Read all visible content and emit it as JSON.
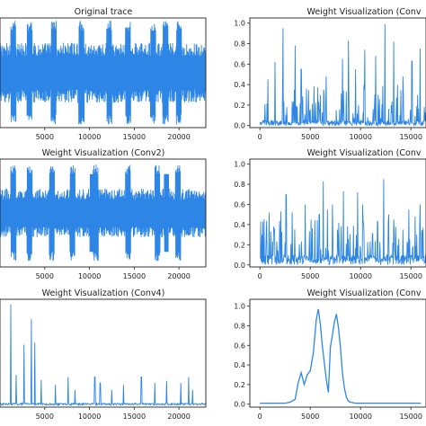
{
  "figure": {
    "line_color": "#2d86e6",
    "text_color": "#222222",
    "panel_border_color": "#222222"
  },
  "chart_data": [
    {
      "type": "line",
      "title": "Original trace",
      "xlabel": "",
      "ylabel": "",
      "xlim": [
        0,
        23000
      ],
      "xticks": [
        5000,
        10000,
        15000,
        20000
      ],
      "xtick_labels": [
        "5000",
        "10000",
        "15000",
        "20000"
      ],
      "yticks": [],
      "ytick_labels": [],
      "ylim": [
        -1,
        1
      ],
      "series": [
        {
          "signal": "dense-oscillation",
          "amplitude": 0.55,
          "spike_amplitude": 0.95,
          "spike_x": [
            1500,
            3300,
            6000,
            9100,
            12200,
            14300,
            17100,
            18500,
            20000
          ]
        }
      ],
      "grid": false,
      "legend": "none"
    },
    {
      "type": "line",
      "title": "Weight Visualization (Conv",
      "xlabel": "",
      "ylabel": "",
      "xlim": [
        -1000,
        16500
      ],
      "ylim": [
        -0.02,
        1.05
      ],
      "xticks": [
        0,
        5000,
        10000,
        15000
      ],
      "xtick_labels": [
        "0",
        "5000",
        "10000",
        "15000"
      ],
      "yticks": [
        0.0,
        0.2,
        0.4,
        0.6,
        0.8,
        1.0
      ],
      "ytick_labels": [
        "0.0",
        "0.2",
        "0.4",
        "0.6",
        "0.8",
        "1.0"
      ],
      "series": [
        {
          "signal": "sparse-spikes",
          "baseline": 0.05,
          "spikes": [
            [
              800,
              0.45
            ],
            [
              1500,
              0.62
            ],
            [
              2300,
              0.95
            ],
            [
              3500,
              0.78
            ],
            [
              4100,
              0.55
            ],
            [
              5200,
              0.72
            ],
            [
              5900,
              0.86
            ],
            [
              6600,
              0.48
            ],
            [
              7600,
              0.85
            ],
            [
              8200,
              0.65
            ],
            [
              8800,
              0.83
            ],
            [
              9500,
              0.55
            ],
            [
              10400,
              0.74
            ],
            [
              11500,
              0.68
            ],
            [
              12400,
              0.99
            ],
            [
              13300,
              0.82
            ],
            [
              14200,
              0.48
            ],
            [
              15100,
              0.63
            ],
            [
              15900,
              0.75
            ]
          ]
        }
      ],
      "grid": false,
      "legend": "none"
    },
    {
      "type": "line",
      "title": "Weight Visualization (Conv2)",
      "xlabel": "",
      "ylabel": "",
      "xlim": [
        0,
        23000
      ],
      "xticks": [
        5000,
        10000,
        15000,
        20000
      ],
      "xtick_labels": [
        "5000",
        "10000",
        "15000",
        "20000"
      ],
      "yticks": [],
      "ytick_labels": [],
      "ylim": [
        -1,
        1
      ],
      "series": [
        {
          "signal": "dense-oscillation",
          "amplitude": 0.45,
          "spike_amplitude": 0.9,
          "spike_x": [
            1500,
            3300,
            5800,
            8100,
            10700,
            14300,
            17600,
            19900
          ],
          "dips_x": [
            1500,
            5800,
            10300,
            14300,
            18600
          ]
        }
      ],
      "grid": false,
      "legend": "none"
    },
    {
      "type": "line",
      "title": "Weight Visualization (Conv",
      "xlabel": "",
      "ylabel": "",
      "xlim": [
        -1000,
        16500
      ],
      "ylim": [
        -0.02,
        1.05
      ],
      "xticks": [
        0,
        5000,
        10000,
        15000
      ],
      "xtick_labels": [
        "0",
        "5000",
        "10000",
        "15000"
      ],
      "yticks": [
        0.0,
        0.2,
        0.4,
        0.6,
        0.8,
        1.0
      ],
      "ytick_labels": [
        "0.0",
        "0.2",
        "0.4",
        "0.6",
        "0.8",
        "1.0"
      ],
      "series": [
        {
          "signal": "sparse-spikes",
          "baseline": 0.1,
          "spikes": [
            [
              400,
              0.45
            ],
            [
              900,
              0.52
            ],
            [
              1400,
              0.38
            ],
            [
              2100,
              0.53
            ],
            [
              2600,
              0.7
            ],
            [
              3200,
              0.52
            ],
            [
              3900,
              0.42
            ],
            [
              4500,
              0.6
            ],
            [
              5100,
              0.45
            ],
            [
              5900,
              0.5
            ],
            [
              6300,
              0.83
            ],
            [
              6700,
              0.55
            ],
            [
              7200,
              0.6
            ],
            [
              7700,
              0.35
            ],
            [
              8300,
              0.73
            ],
            [
              8800,
              0.5
            ],
            [
              9300,
              0.97
            ],
            [
              9700,
              0.72
            ],
            [
              10200,
              0.6
            ],
            [
              10700,
              0.75
            ],
            [
              11200,
              0.55
            ],
            [
              11700,
              0.43
            ],
            [
              12300,
              0.85
            ],
            [
              12800,
              0.5
            ],
            [
              13300,
              0.45
            ],
            [
              13700,
              0.7
            ],
            [
              14200,
              0.35
            ],
            [
              14800,
              0.55
            ],
            [
              15400,
              0.48
            ],
            [
              15900,
              0.6
            ]
          ]
        }
      ],
      "grid": false,
      "legend": "none"
    },
    {
      "type": "line",
      "title": "Weight Visualization (Conv4)",
      "xlabel": "",
      "ylabel": "",
      "xlim": [
        0,
        23000
      ],
      "ylim": [
        -0.02,
        1.05
      ],
      "xticks": [
        5000,
        10000,
        15000,
        20000
      ],
      "xtick_labels": [
        "5000",
        "10000",
        "15000",
        "20000"
      ],
      "yticks": [],
      "ytick_labels": [],
      "series": [
        {
          "signal": "sparse-spikes",
          "baseline": 0.02,
          "spikes": [
            [
              1200,
              1.0
            ],
            [
              1800,
              0.3
            ],
            [
              2700,
              0.6
            ],
            [
              3500,
              0.85
            ],
            [
              3900,
              0.62
            ],
            [
              4600,
              0.25
            ],
            [
              6200,
              0.2
            ],
            [
              7600,
              0.28
            ],
            [
              8400,
              0.15
            ],
            [
              10600,
              0.28
            ],
            [
              11200,
              0.22
            ],
            [
              12500,
              0.15
            ],
            [
              13800,
              0.2
            ],
            [
              15800,
              0.28
            ],
            [
              17300,
              0.22
            ],
            [
              18600,
              0.24
            ],
            [
              20200,
              0.22
            ],
            [
              21100,
              0.28
            ],
            [
              21500,
              0.15
            ]
          ]
        }
      ],
      "grid": false,
      "legend": "none"
    },
    {
      "type": "line",
      "title": "Weight Visualization (Conv",
      "xlabel": "",
      "ylabel": "",
      "xlim": [
        -1000,
        16500
      ],
      "ylim": [
        -0.03,
        1.07
      ],
      "xticks": [
        0,
        5000,
        10000,
        15000
      ],
      "xtick_labels": [
        "0",
        "5000",
        "10000",
        "15000"
      ],
      "yticks": [
        0.0,
        0.2,
        0.4,
        0.6,
        0.8,
        1.0
      ],
      "ytick_labels": [
        "0.0",
        "0.2",
        "0.4",
        "0.6",
        "0.8",
        "1.0"
      ],
      "series": [
        {
          "x": [
            0,
            500,
            1000,
            1500,
            2000,
            2500,
            3000,
            3500,
            3800,
            4100,
            4400,
            4700,
            5000,
            5300,
            5600,
            5800,
            6000,
            6200,
            6400,
            6600,
            6800,
            7000,
            7200,
            7400,
            7600,
            7800,
            8000,
            8200,
            8400,
            8600,
            8800,
            9000,
            9500,
            10000,
            11000,
            12000,
            13000,
            14000,
            15000,
            16000
          ],
          "y": [
            0.01,
            0.01,
            0.01,
            0.01,
            0.01,
            0.01,
            0.02,
            0.05,
            0.22,
            0.32,
            0.2,
            0.3,
            0.34,
            0.52,
            0.86,
            0.97,
            0.82,
            0.6,
            0.42,
            0.25,
            0.12,
            0.58,
            0.7,
            0.84,
            0.92,
            0.78,
            0.58,
            0.32,
            0.16,
            0.07,
            0.03,
            0.02,
            0.01,
            0.01,
            0.01,
            0.01,
            0.01,
            0.01,
            0.01,
            0.01
          ]
        }
      ],
      "grid": false,
      "legend": "none"
    }
  ]
}
